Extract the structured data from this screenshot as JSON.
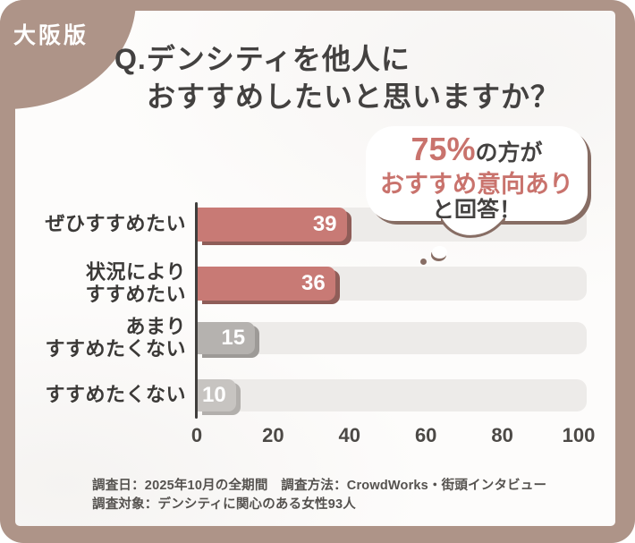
{
  "badge": {
    "label": "大阪版"
  },
  "title": {
    "line1": "Q.デンシティを他人に",
    "line2": "おすすめしたいと思いますか？"
  },
  "callout": {
    "highlight_pct": "75%",
    "suffix1": "の方が",
    "line2": "おすすめ意向あり",
    "line3": "と回答！",
    "accent_color": "#c9736d",
    "border_color": "#876d64"
  },
  "chart_data": {
    "type": "bar",
    "orientation": "horizontal",
    "categories": [
      "ぜひすすめたい",
      "状況により\nすすめたい",
      "あまり\nすすめたくない",
      "すすめたくない"
    ],
    "values": [
      39,
      36,
      15,
      10
    ],
    "xlim": [
      0,
      100
    ],
    "x_ticks": [
      0,
      20,
      40,
      60,
      80,
      100
    ],
    "bar_colors": [
      "#c87a75",
      "#c87a75",
      "#b5b2af",
      "#c7c4c1"
    ],
    "bar_shadow_colors": [
      "#8f5d58",
      "#8f5d58",
      "#9d9a97",
      "#b2afac"
    ],
    "track_color": "#edebe9",
    "value_label_color": "#ffffff",
    "legend": null,
    "grid": false
  },
  "footer": {
    "line1": "調査日：2025年10月の全期間　調査方法：CrowdWorks・街頭インタビュー",
    "line2": "調査対象：デンシティに関心のある女性93人"
  },
  "theme": {
    "frame_color": "#ae9488",
    "title_color": "#434140",
    "text_color": "#3b3937",
    "axis_color": "#403e3c",
    "tick_color": "#4c4946",
    "footer_color": "#55524f",
    "badge_text_color": "#ffffff"
  }
}
